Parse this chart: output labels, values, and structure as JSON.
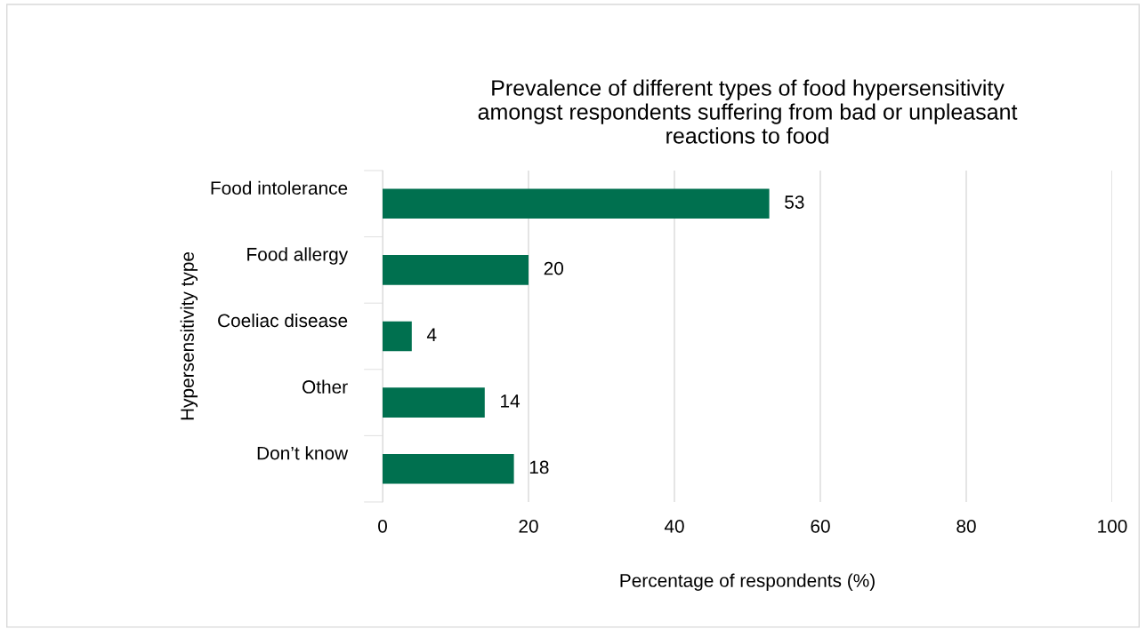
{
  "chart_data": {
    "type": "bar",
    "orientation": "horizontal",
    "title": "Prevalence of different types of food hypersensitivity\namongst respondents suffering from bad or unpleasant\nreactions to food",
    "xlabel": "Percentage of respondents (%)",
    "ylabel": "Hypersensitivity type",
    "categories": [
      "Food intolerance",
      "Food allergy",
      "Coeliac disease",
      "Other",
      "Don’t know"
    ],
    "values": [
      53,
      20,
      4,
      14,
      18
    ],
    "color": "#00704f",
    "xlim": [
      0,
      100
    ],
    "xticks": [
      0,
      20,
      40,
      60,
      80,
      100
    ],
    "grid": "x",
    "data_labels": true,
    "legend": false
  }
}
